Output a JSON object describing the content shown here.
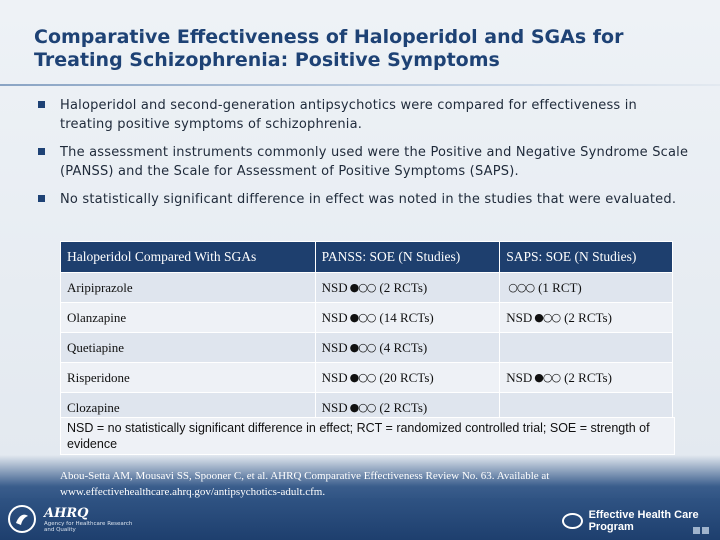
{
  "slide": {
    "title": "Comparative Effectiveness of Haloperidol and SGAs for Treating Schizophrenia: Positive Symptoms",
    "bullets": [
      "Haloperidol and second-generation antipsychotics were compared for effectiveness in treating positive symptoms of schizophrenia.",
      "The assessment instruments commonly used were the Positive and Negative Syndrome Scale (PANSS) and the Scale for Assessment of Positive Symptoms (SAPS).",
      "No statistically significant difference in effect was noted in the studies that were evaluated."
    ]
  },
  "table": {
    "headers": [
      "Haloperidol Compared With SGAs",
      "PANSS: SOE (N Studies)",
      "SAPS: SOE (N Studies)"
    ],
    "rows": [
      {
        "drug": "Aripiprazole",
        "panss_prefix": "NSD",
        "panss_soe": "●○○",
        "panss_n": "(2 RCTs)",
        "saps_prefix": "",
        "saps_soe": "○○○",
        "saps_n": "(1 RCT)"
      },
      {
        "drug": "Olanzapine",
        "panss_prefix": "NSD",
        "panss_soe": "●○○",
        "panss_n": "(14 RCTs)",
        "saps_prefix": "NSD",
        "saps_soe": "●○○",
        "saps_n": "(2 RCTs)"
      },
      {
        "drug": "Quetiapine",
        "panss_prefix": "NSD",
        "panss_soe": "●○○",
        "panss_n": "(4 RCTs)",
        "saps_prefix": "",
        "saps_soe": "",
        "saps_n": ""
      },
      {
        "drug": "Risperidone",
        "panss_prefix": "NSD",
        "panss_soe": "●○○",
        "panss_n": "(20 RCTs)",
        "saps_prefix": "NSD",
        "saps_soe": "●○○",
        "saps_n": "(2 RCTs)"
      },
      {
        "drug": "Clozapine",
        "panss_prefix": "NSD",
        "panss_soe": "●○○",
        "panss_n": "(2 RCTs)",
        "saps_prefix": "",
        "saps_soe": "",
        "saps_n": ""
      }
    ],
    "note": "NSD = no statistically significant difference in effect; RCT = randomized controlled trial; SOE = strength of evidence"
  },
  "citation": "Abou-Setta AM, Mousavi SS, Spooner C, et al. AHRQ Comparative Effectiveness Review No. 63. Available at www.effectivehealthcare.ahrq.gov/antipsychotics-adult.cfm.",
  "footer": {
    "ahrq_logo_text": "AHRQ",
    "ahrq_subtext": "Agency for Healthcare Research and Quality",
    "ehc_logo_text": "Effective Health Care Program",
    "hhs_logo_icon": "hhs-seal-icon"
  },
  "colors": {
    "title": "#1e4275",
    "header_bg": "#1e3f6e",
    "row_bg": "#dfe5ee",
    "row_alt_bg": "#eef1f6",
    "footer_bg": "#1e3f6e"
  }
}
